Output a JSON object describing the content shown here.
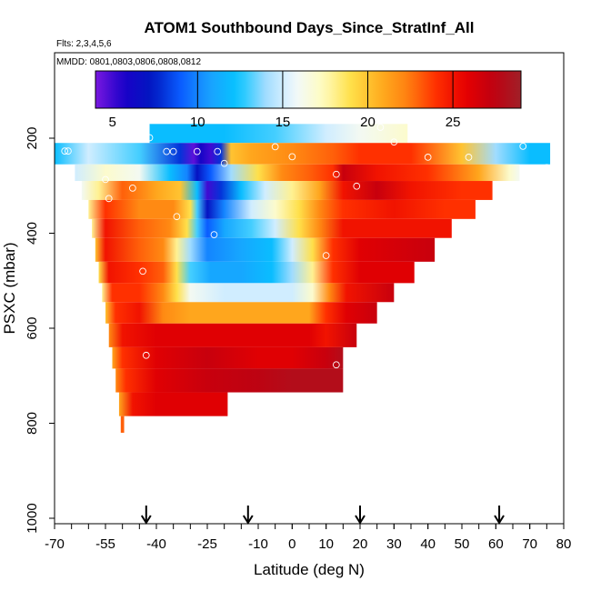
{
  "chart_data": {
    "type": "heatmap",
    "title": "ATOM1 Southbound Days_Since_StratInf_All",
    "subtitle_flights": "Flts: 2,3,4,5,6",
    "subtitle_dates": "MMDD: 0801,0803,0806,0808,0812",
    "xlabel": "Latitude (deg N)",
    "ylabel": "PSXC (mbar)",
    "xlim": [
      -70,
      80
    ],
    "ylim": [
      1000,
      0
    ],
    "x_ticks": [
      -70,
      -55,
      -40,
      -25,
      -10,
      0,
      10,
      20,
      30,
      40,
      50,
      60,
      70,
      80
    ],
    "x_tick_labels": [
      "-70",
      "-55",
      "-40",
      "-25",
      "-10",
      "0",
      "10",
      "20",
      "30",
      "40",
      "50",
      "60",
      "70",
      "80"
    ],
    "y_ticks": [
      200,
      400,
      600,
      800,
      1000
    ],
    "y_tick_labels": [
      "200",
      "400",
      "600",
      "800",
      "1000"
    ],
    "colorbar": {
      "min": 4,
      "max": 29,
      "ticks": [
        5,
        10,
        15,
        20,
        25
      ],
      "tick_labels": [
        "5",
        "10",
        "15",
        "20",
        "25"
      ],
      "colors": [
        "#7a18e0",
        "#1a00c8",
        "#0018c0",
        "#0a5cff",
        "#1aa0ff",
        "#06c4ff",
        "#a0dcff",
        "#f0f8ff",
        "#fffcc0",
        "#ffe04a",
        "#ffb020",
        "#ff8010",
        "#ff3000",
        "#e80000",
        "#c00010",
        "#a02028"
      ]
    },
    "flight_segment_arrows_lat": [
      -43,
      -13,
      20,
      61
    ],
    "rows": [
      {
        "p_top": 170,
        "p_bot": 210,
        "lat_from": -42,
        "lat_to": 34,
        "stops": [
          [
            -42,
            12
          ],
          [
            -20,
            12
          ],
          [
            -5,
            13
          ],
          [
            10,
            15
          ],
          [
            20,
            16
          ],
          [
            34,
            17
          ]
        ]
      },
      {
        "p_top": 210,
        "p_bot": 255,
        "lat_from": -70,
        "lat_to": 76,
        "stops": [
          [
            -70,
            12
          ],
          [
            -60,
            15
          ],
          [
            -45,
            13
          ],
          [
            -33,
            8
          ],
          [
            -29,
            4.5
          ],
          [
            -27,
            6
          ],
          [
            -24,
            5
          ],
          [
            -21,
            8
          ],
          [
            -18,
            20
          ],
          [
            -12,
            21
          ],
          [
            0,
            22
          ],
          [
            12,
            23
          ],
          [
            20,
            24
          ],
          [
            35,
            24
          ],
          [
            50,
            20
          ],
          [
            60,
            14
          ],
          [
            70,
            12
          ],
          [
            76,
            12
          ]
        ]
      },
      {
        "p_top": 255,
        "p_bot": 290,
        "lat_from": -64,
        "lat_to": 67,
        "stops": [
          [
            -64,
            15
          ],
          [
            -55,
            17
          ],
          [
            -45,
            16
          ],
          [
            -36,
            12
          ],
          [
            -31,
            10
          ],
          [
            -28,
            7
          ],
          [
            -24,
            9
          ],
          [
            -18,
            14
          ],
          [
            -10,
            19
          ],
          [
            -3,
            22
          ],
          [
            5,
            23
          ],
          [
            12,
            24
          ],
          [
            15,
            27
          ],
          [
            25,
            25
          ],
          [
            40,
            24
          ],
          [
            55,
            21
          ],
          [
            64,
            17
          ],
          [
            67,
            16
          ]
        ]
      },
      {
        "p_top": 290,
        "p_bot": 330,
        "lat_from": -62,
        "lat_to": 59,
        "stops": [
          [
            -62,
            16
          ],
          [
            -57,
            18
          ],
          [
            -50,
            23
          ],
          [
            -40,
            21
          ],
          [
            -33,
            20
          ],
          [
            -28,
            12
          ],
          [
            -25,
            5
          ],
          [
            -21,
            8
          ],
          [
            -15,
            12
          ],
          [
            -8,
            15
          ],
          [
            0,
            18
          ],
          [
            8,
            21
          ],
          [
            15,
            25
          ],
          [
            25,
            27
          ],
          [
            35,
            25
          ],
          [
            50,
            24
          ],
          [
            59,
            24
          ]
        ]
      },
      {
        "p_top": 330,
        "p_bot": 370,
        "lat_from": -60,
        "lat_to": 54,
        "stops": [
          [
            -60,
            18
          ],
          [
            -55,
            24
          ],
          [
            -45,
            22
          ],
          [
            -35,
            22
          ],
          [
            -30,
            19
          ],
          [
            -28,
            13
          ],
          [
            -25,
            7
          ],
          [
            -20,
            10
          ],
          [
            -12,
            15
          ],
          [
            -5,
            17
          ],
          [
            2,
            19
          ],
          [
            8,
            22
          ],
          [
            15,
            24
          ],
          [
            30,
            25
          ],
          [
            45,
            24
          ],
          [
            54,
            24
          ]
        ]
      },
      {
        "p_top": 370,
        "p_bot": 410,
        "lat_from": -59,
        "lat_to": 47,
        "stops": [
          [
            -59,
            18
          ],
          [
            -55,
            25
          ],
          [
            -45,
            23
          ],
          [
            -36,
            22
          ],
          [
            -31,
            19
          ],
          [
            -28,
            13
          ],
          [
            -25,
            9
          ],
          [
            -20,
            11
          ],
          [
            -12,
            13
          ],
          [
            -5,
            15
          ],
          [
            2,
            19
          ],
          [
            8,
            22
          ],
          [
            15,
            25
          ],
          [
            30,
            25
          ],
          [
            47,
            25
          ]
        ]
      },
      {
        "p_top": 410,
        "p_bot": 460,
        "lat_from": -58,
        "lat_to": 42,
        "stops": [
          [
            -58,
            20
          ],
          [
            -55,
            25
          ],
          [
            -45,
            23
          ],
          [
            -38,
            22
          ],
          [
            -34,
            18
          ],
          [
            -30,
            14
          ],
          [
            -25,
            10
          ],
          [
            -15,
            11
          ],
          [
            -6,
            12
          ],
          [
            0,
            15
          ],
          [
            6,
            19
          ],
          [
            12,
            24
          ],
          [
            20,
            26
          ],
          [
            42,
            27
          ]
        ]
      },
      {
        "p_top": 460,
        "p_bot": 505,
        "lat_from": -57,
        "lat_to": 36,
        "stops": [
          [
            -57,
            19
          ],
          [
            -54,
            25
          ],
          [
            -45,
            24
          ],
          [
            -38,
            23
          ],
          [
            -34,
            19
          ],
          [
            -30,
            13
          ],
          [
            -24,
            11
          ],
          [
            -15,
            11
          ],
          [
            -6,
            12
          ],
          [
            0,
            14
          ],
          [
            6,
            18
          ],
          [
            12,
            24
          ],
          [
            20,
            26
          ],
          [
            36,
            26
          ]
        ]
      },
      {
        "p_top": 505,
        "p_bot": 545,
        "lat_from": -56,
        "lat_to": 30,
        "stops": [
          [
            -56,
            18
          ],
          [
            -53,
            24
          ],
          [
            -45,
            24
          ],
          [
            -38,
            22
          ],
          [
            -34,
            19
          ],
          [
            -30,
            16
          ],
          [
            -20,
            15
          ],
          [
            -10,
            15
          ],
          [
            0,
            15
          ],
          [
            6,
            17
          ],
          [
            11,
            22
          ],
          [
            16,
            25
          ],
          [
            30,
            27
          ]
        ]
      },
      {
        "p_top": 545,
        "p_bot": 590,
        "lat_from": -55,
        "lat_to": 25,
        "stops": [
          [
            -55,
            20
          ],
          [
            -52,
            24
          ],
          [
            -45,
            25
          ],
          [
            -38,
            22
          ],
          [
            -30,
            21
          ],
          [
            -15,
            21
          ],
          [
            -5,
            21
          ],
          [
            5,
            21
          ],
          [
            10,
            24
          ],
          [
            16,
            26
          ],
          [
            25,
            27
          ]
        ]
      },
      {
        "p_top": 590,
        "p_bot": 640,
        "lat_from": -54,
        "lat_to": 19,
        "stops": [
          [
            -54,
            22
          ],
          [
            -50,
            25
          ],
          [
            -40,
            26
          ],
          [
            -25,
            26
          ],
          [
            -10,
            26
          ],
          [
            5,
            26
          ],
          [
            10,
            25
          ],
          [
            19,
            27
          ]
        ]
      },
      {
        "p_top": 640,
        "p_bot": 685,
        "lat_from": -53,
        "lat_to": 15,
        "stops": [
          [
            -53,
            21
          ],
          [
            -50,
            24
          ],
          [
            -40,
            26
          ],
          [
            -25,
            27
          ],
          [
            -10,
            26
          ],
          [
            0,
            26
          ],
          [
            10,
            27
          ],
          [
            15,
            28
          ]
        ]
      },
      {
        "p_top": 685,
        "p_bot": 735,
        "lat_from": -52,
        "lat_to": 15,
        "stops": [
          [
            -52,
            22
          ],
          [
            -49,
            24
          ],
          [
            -40,
            26
          ],
          [
            -25,
            27
          ],
          [
            -10,
            27.5
          ],
          [
            0,
            28
          ],
          [
            10,
            28
          ],
          [
            15,
            28
          ]
        ]
      },
      {
        "p_top": 735,
        "p_bot": 785,
        "lat_from": -51,
        "lat_to": -19,
        "stops": [
          [
            -51,
            21
          ],
          [
            -47,
            25
          ],
          [
            -40,
            26
          ],
          [
            -30,
            26
          ],
          [
            -19,
            26
          ]
        ]
      },
      {
        "p_top": 785,
        "p_bot": 820,
        "lat_from": -50.5,
        "lat_to": -49.5,
        "stops": [
          [
            -50.5,
            23
          ],
          [
            -49.5,
            23
          ]
        ]
      }
    ],
    "markers": [
      [
        -66,
        227
      ],
      [
        -67,
        227
      ],
      [
        -42,
        199
      ],
      [
        -37,
        228
      ],
      [
        -28,
        228
      ],
      [
        -22,
        228
      ],
      [
        -20,
        253
      ],
      [
        -35,
        228
      ],
      [
        -5,
        218
      ],
      [
        0,
        239
      ],
      [
        26,
        177
      ],
      [
        30,
        208
      ],
      [
        40,
        240
      ],
      [
        52,
        240
      ],
      [
        68,
        217
      ],
      [
        75,
        262
      ],
      [
        -55,
        287
      ],
      [
        -47,
        305
      ],
      [
        -54,
        327
      ],
      [
        -34,
        365
      ],
      [
        -23,
        403
      ],
      [
        13,
        276
      ],
      [
        19,
        301
      ],
      [
        10,
        447
      ],
      [
        -44,
        480
      ],
      [
        -43,
        657
      ],
      [
        19,
        657
      ],
      [
        13,
        677
      ],
      [
        -54,
        767
      ]
    ]
  }
}
